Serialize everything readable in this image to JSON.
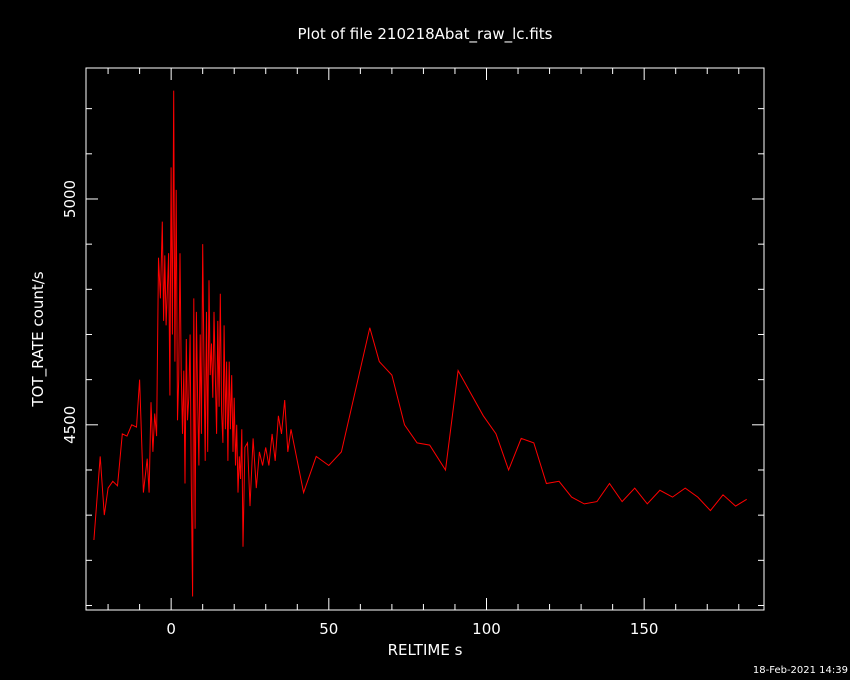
{
  "chart_data": {
    "type": "line",
    "title": "Plot of file 210218Abat_raw_lc.fits",
    "xlabel": "RELTIME  s",
    "ylabel": "TOT_RATE  count/s",
    "xlim": [
      -27,
      188
    ],
    "ylim": [
      4090,
      5290
    ],
    "x_ticks": [
      0,
      50,
      100,
      150
    ],
    "y_ticks": [
      4500,
      5000
    ],
    "grid": false,
    "legend": "none",
    "series": [
      {
        "color": "#ff0000",
        "x": [
          -24.5,
          -22.5,
          -21.2,
          -20.0,
          -18.5,
          -17.0,
          -15.5,
          -14.0,
          -12.5,
          -11.0,
          -10.0,
          -8.8,
          -7.6,
          -7.0,
          -6.4,
          -5.8,
          -5.2,
          -4.6,
          -4.0,
          -3.4,
          -2.8,
          -2.4,
          -2.0,
          -1.6,
          -1.2,
          -0.8,
          -0.4,
          0.0,
          0.4,
          0.8,
          1.2,
          1.6,
          2.0,
          2.4,
          2.8,
          3.2,
          3.6,
          4.0,
          4.4,
          4.8,
          5.2,
          5.6,
          6.0,
          6.4,
          6.8,
          7.2,
          7.6,
          8.0,
          8.4,
          8.8,
          9.2,
          9.6,
          10.0,
          10.4,
          10.8,
          11.2,
          11.6,
          12.0,
          12.4,
          12.8,
          13.2,
          13.6,
          14.0,
          14.4,
          14.8,
          15.2,
          15.6,
          16.0,
          16.4,
          16.8,
          17.2,
          17.6,
          18.0,
          18.4,
          18.8,
          19.2,
          19.6,
          20.0,
          20.4,
          20.8,
          21.2,
          21.6,
          22.0,
          22.4,
          22.8,
          23.4,
          24.2,
          25.0,
          26.0,
          27.0,
          28.0,
          29.0,
          30.0,
          31.0,
          32.0,
          33.0,
          34.0,
          35.0,
          36.0,
          37.0,
          38.0,
          42.0,
          46.0,
          50.0,
          54.0,
          63.0,
          66.0,
          70.0,
          74.0,
          78.0,
          82.0,
          87.0,
          91.0,
          95.0,
          99.0,
          103.0,
          107.0,
          111.0,
          115.0,
          119.0,
          123.0,
          127.0,
          131.0,
          135.0,
          139.0,
          143.0,
          147.0,
          151.0,
          155.0,
          159.0,
          163.0,
          167.0,
          171.0,
          175.0,
          179.0,
          182.5
        ],
        "y": [
          4245,
          4430,
          4300,
          4360,
          4375,
          4365,
          4480,
          4475,
          4500,
          4495,
          4600,
          4350,
          4425,
          4350,
          4550,
          4440,
          4525,
          4475,
          4870,
          4780,
          4950,
          4730,
          4875,
          4720,
          4800,
          4880,
          4565,
          5070,
          4700,
          5240,
          4640,
          5020,
          4510,
          4600,
          4880,
          4620,
          4480,
          4620,
          4370,
          4690,
          4510,
          4560,
          4700,
          4370,
          4120,
          4780,
          4270,
          4750,
          4560,
          4410,
          4700,
          4480,
          4900,
          4650,
          4420,
          4750,
          4440,
          4820,
          4610,
          4680,
          4560,
          4750,
          4610,
          4480,
          4730,
          4540,
          4790,
          4530,
          4460,
          4720,
          4490,
          4640,
          4420,
          4640,
          4490,
          4610,
          4440,
          4560,
          4410,
          4500,
          4350,
          4430,
          4380,
          4490,
          4230,
          4450,
          4460,
          4320,
          4470,
          4360,
          4440,
          4410,
          4450,
          4410,
          4480,
          4420,
          4520,
          4480,
          4555,
          4440,
          4490,
          4350,
          4430,
          4410,
          4440,
          4715,
          4640,
          4610,
          4500,
          4460,
          4455,
          4400,
          4620,
          4570,
          4520,
          4480,
          4400,
          4470,
          4460,
          4370,
          4375,
          4340,
          4325,
          4330,
          4370,
          4330,
          4360,
          4325,
          4355,
          4340,
          4360,
          4340,
          4310,
          4345,
          4320,
          4335
        ]
      }
    ]
  },
  "footer": {
    "timestamp": "18-Feb-2021 14:39"
  }
}
